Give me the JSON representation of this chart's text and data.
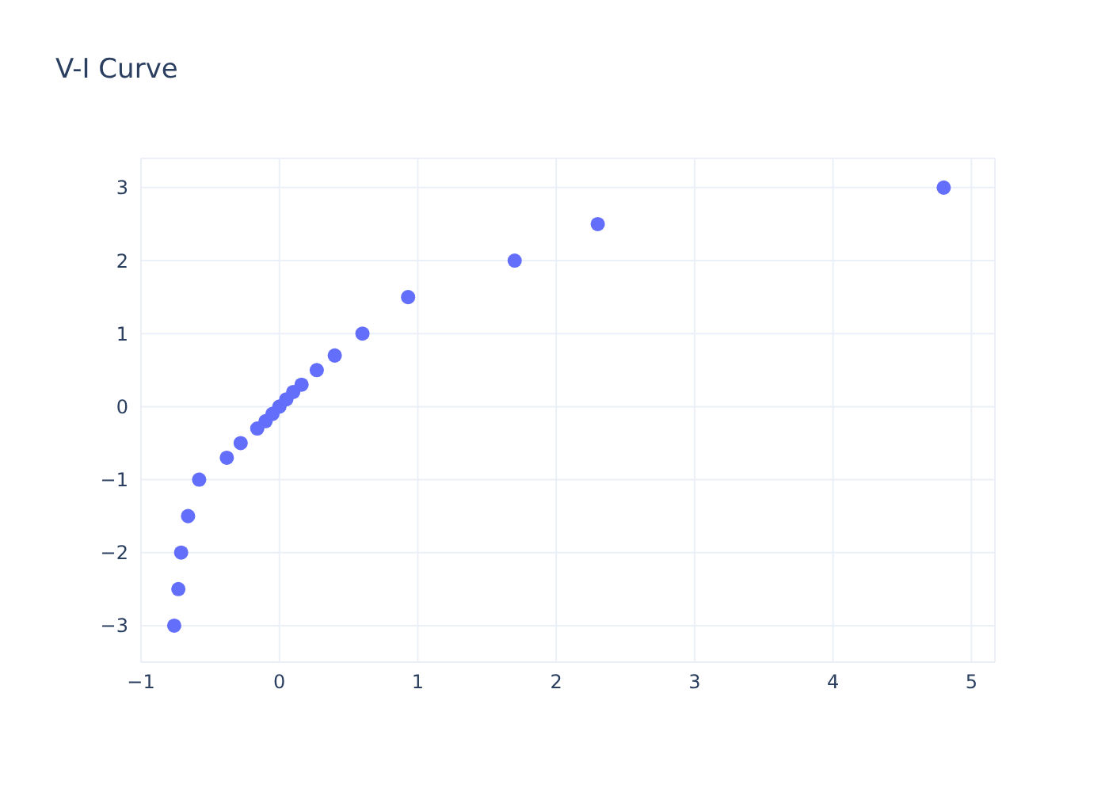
{
  "chart_data": {
    "type": "scatter",
    "title": "V-I Curve",
    "x": [
      -0.76,
      -0.73,
      -0.71,
      -0.66,
      -0.58,
      -0.38,
      -0.28,
      -0.16,
      -0.1,
      -0.05,
      0,
      0.05,
      0.1,
      0.16,
      0.27,
      0.4,
      0.6,
      0.93,
      1.7,
      2.3,
      4.8
    ],
    "series": [
      {
        "color": "#636efa",
        "values": [
          -3,
          -2.5,
          -2,
          -1.5,
          -1,
          -0.7,
          -0.5,
          -0.3,
          -0.2,
          -0.1,
          0,
          0.1,
          0.2,
          0.3,
          0.5,
          0.7,
          1,
          1.5,
          2,
          2.5,
          3
        ]
      }
    ],
    "xlim": [
      -1,
      5.17
    ],
    "xticks": [
      -1,
      0,
      1,
      2,
      3,
      4,
      5
    ],
    "ylim": [
      -3.5,
      3.4
    ],
    "yticks": [
      -3,
      -2,
      -1,
      0,
      1,
      2,
      3
    ],
    "grid": true,
    "marker": "circle"
  }
}
